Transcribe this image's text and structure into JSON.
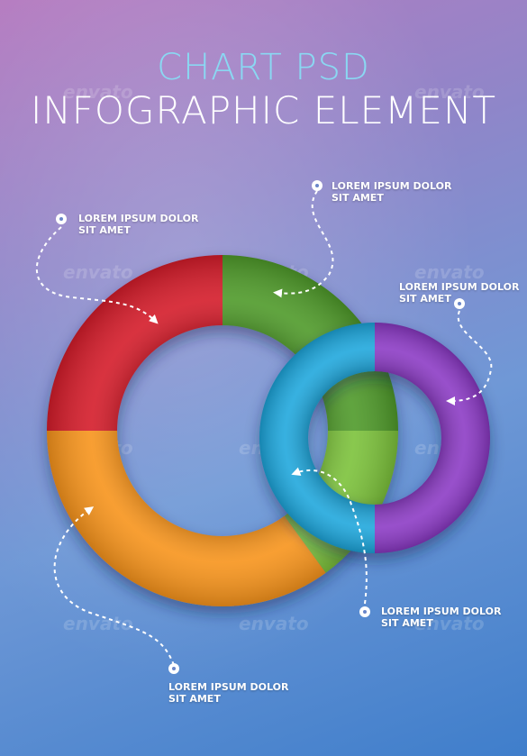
{
  "title_line1": "CHART PSD",
  "title_line2": "INFOGRAPHIC ELEMENT",
  "watermark": "envato",
  "callouts": [
    {
      "line1": "LOREM IPSUM DOLOR",
      "line2": "SIT AMET"
    },
    {
      "line1": "LOREM IPSUM DOLOR",
      "line2": "SIT AMET"
    },
    {
      "line1": "LOREM IPSUM DOLOR",
      "line2": "SIT AMET"
    },
    {
      "line1": "LOREM IPSUM DOLOR",
      "line2": "SIT AMET"
    },
    {
      "line1": "LOREM IPSUM DOLOR",
      "line2": "SIT AMET"
    }
  ],
  "chart_data": [
    {
      "type": "pie",
      "style": "donut",
      "slices": [
        {
          "value": 25,
          "color": "#4f9a2c"
        },
        {
          "value": 15,
          "color": "#7cc23a"
        },
        {
          "value": 35,
          "color": "#f7941e"
        },
        {
          "value": 25,
          "color": "#d41f2a"
        }
      ]
    },
    {
      "type": "pie",
      "style": "donut",
      "slices": [
        {
          "value": 50,
          "color": "#8a39c4"
        },
        {
          "value": 50,
          "color": "#1aa6dc"
        }
      ]
    }
  ]
}
